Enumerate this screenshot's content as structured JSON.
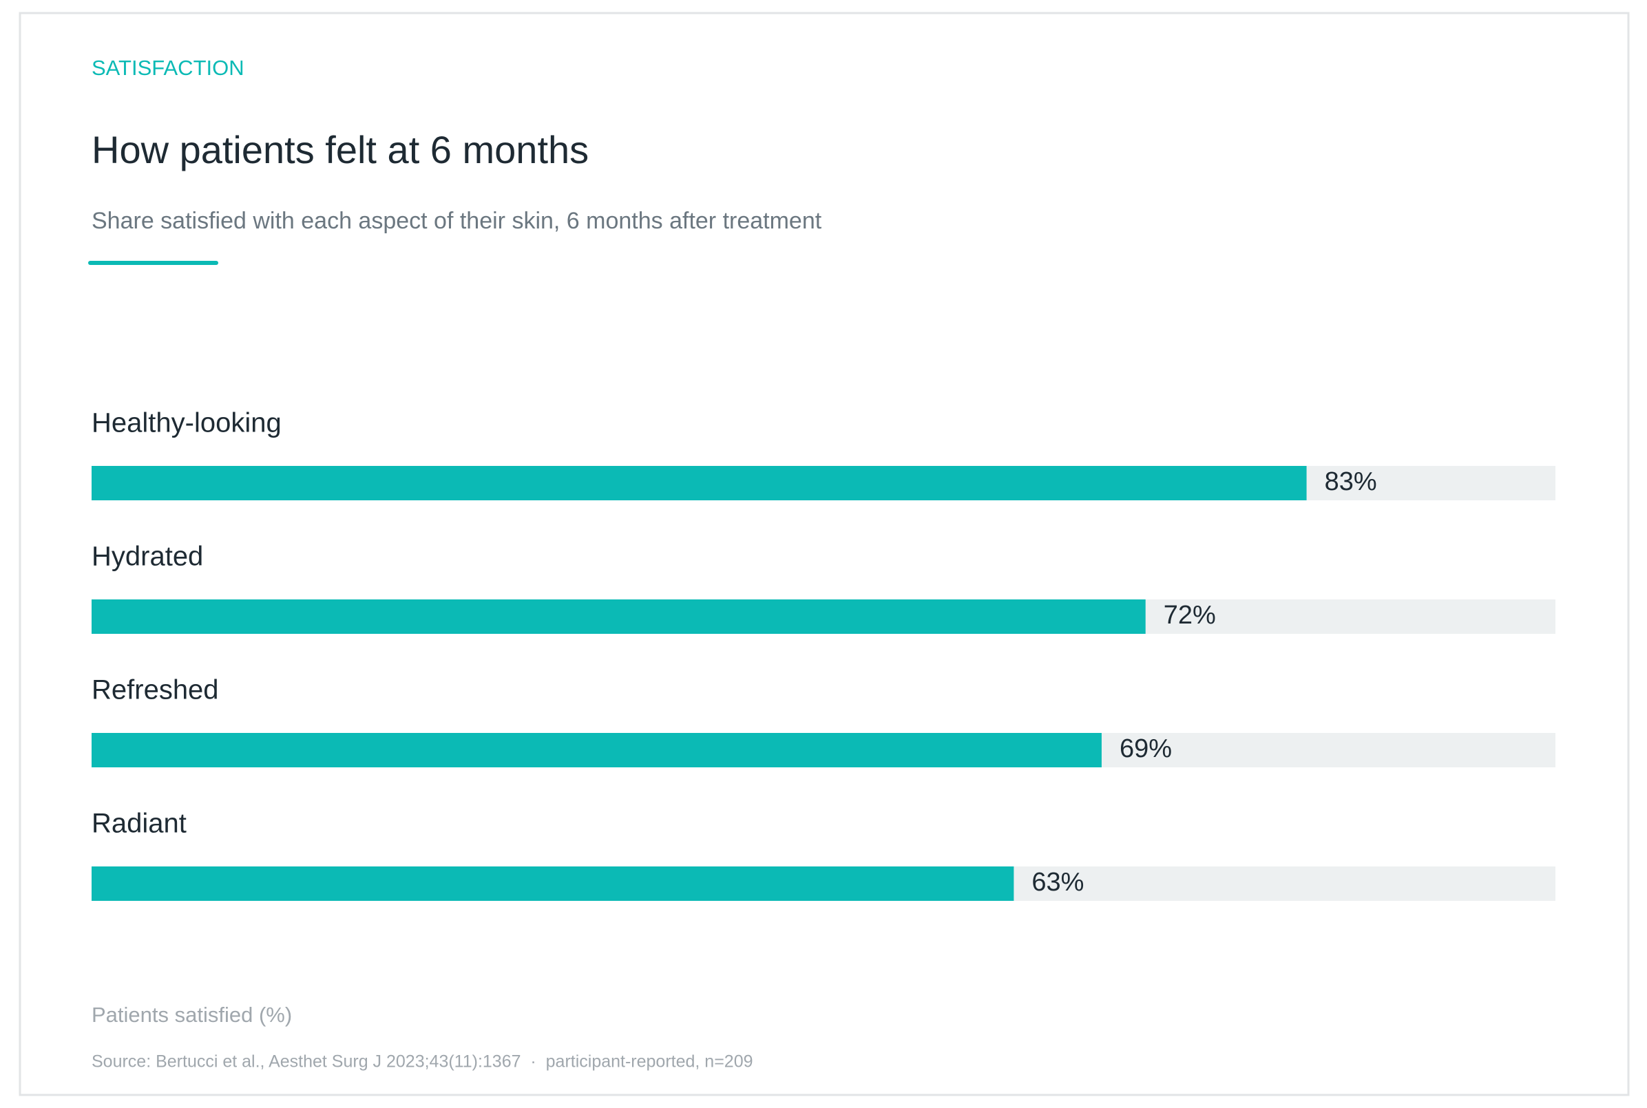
{
  "chart_data": {
    "type": "bar",
    "orientation": "horizontal",
    "kicker": "SATISFACTION",
    "title": "How patients felt at 6 months",
    "subtitle": "Share satisfied with each aspect of their skin, 6 months after treatment",
    "categories": [
      "Healthy-looking",
      "Hydrated",
      "Refreshed",
      "Radiant"
    ],
    "values": [
      83,
      72,
      69,
      63
    ],
    "value_labels": [
      "83%",
      "72%",
      "69%",
      "63%"
    ],
    "xlim": [
      0,
      100
    ],
    "xlabel": "Patients satisfied (%)",
    "source": "Source: Bertucci et al., Aesthet Surg J 2023;43(11):1367  ·  participant-reported, n=209",
    "color": "#0bbab5",
    "track_color": "#edf0f1"
  }
}
